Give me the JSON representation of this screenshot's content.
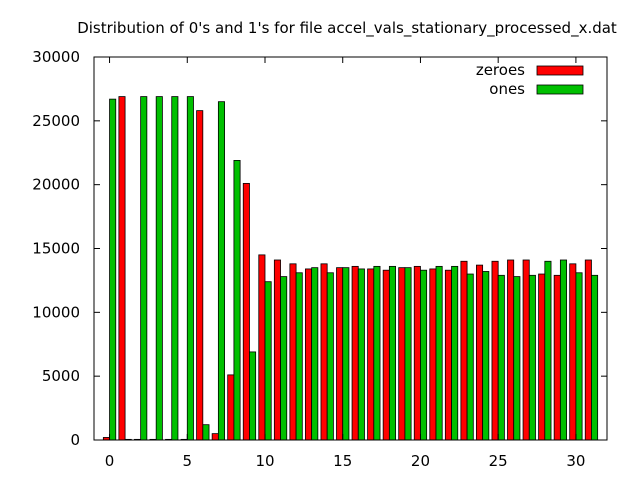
{
  "chart_data": {
    "type": "bar",
    "title": "Distribution of 0's and 1's for file accel_vals_stationary_processed_x.dat",
    "xlabel": "",
    "ylabel": "",
    "x": [
      0,
      1,
      2,
      3,
      4,
      5,
      6,
      7,
      8,
      9,
      10,
      11,
      12,
      13,
      14,
      15,
      16,
      17,
      18,
      19,
      20,
      21,
      22,
      23,
      24,
      25,
      26,
      27,
      28,
      29,
      30,
      31
    ],
    "xlim": [
      -1,
      32
    ],
    "ylim": [
      0,
      30000
    ],
    "xticks": [
      0,
      5,
      10,
      15,
      20,
      25,
      30
    ],
    "yticks": [
      0,
      5000,
      10000,
      15000,
      20000,
      25000,
      30000
    ],
    "grid": false,
    "legend_position": "top-right",
    "series": [
      {
        "name": "zeroes",
        "color": "#ff0000",
        "values": [
          200,
          26900,
          50,
          50,
          50,
          50,
          25800,
          500,
          5100,
          20100,
          14500,
          14100,
          13800,
          13400,
          13800,
          13500,
          13600,
          13400,
          13300,
          13500,
          13600,
          13400,
          13300,
          14000,
          13700,
          14000,
          14100,
          14100,
          13000,
          12900,
          13800,
          14100
        ]
      },
      {
        "name": "ones",
        "color": "#00c000",
        "values": [
          26700,
          50,
          26900,
          26900,
          26900,
          26900,
          1200,
          26500,
          21900,
          6900,
          12400,
          12800,
          13100,
          13500,
          13100,
          13500,
          13400,
          13600,
          13600,
          13500,
          13300,
          13600,
          13600,
          13000,
          13200,
          12900,
          12800,
          12900,
          14000,
          14100,
          13100,
          12900
        ]
      }
    ]
  }
}
